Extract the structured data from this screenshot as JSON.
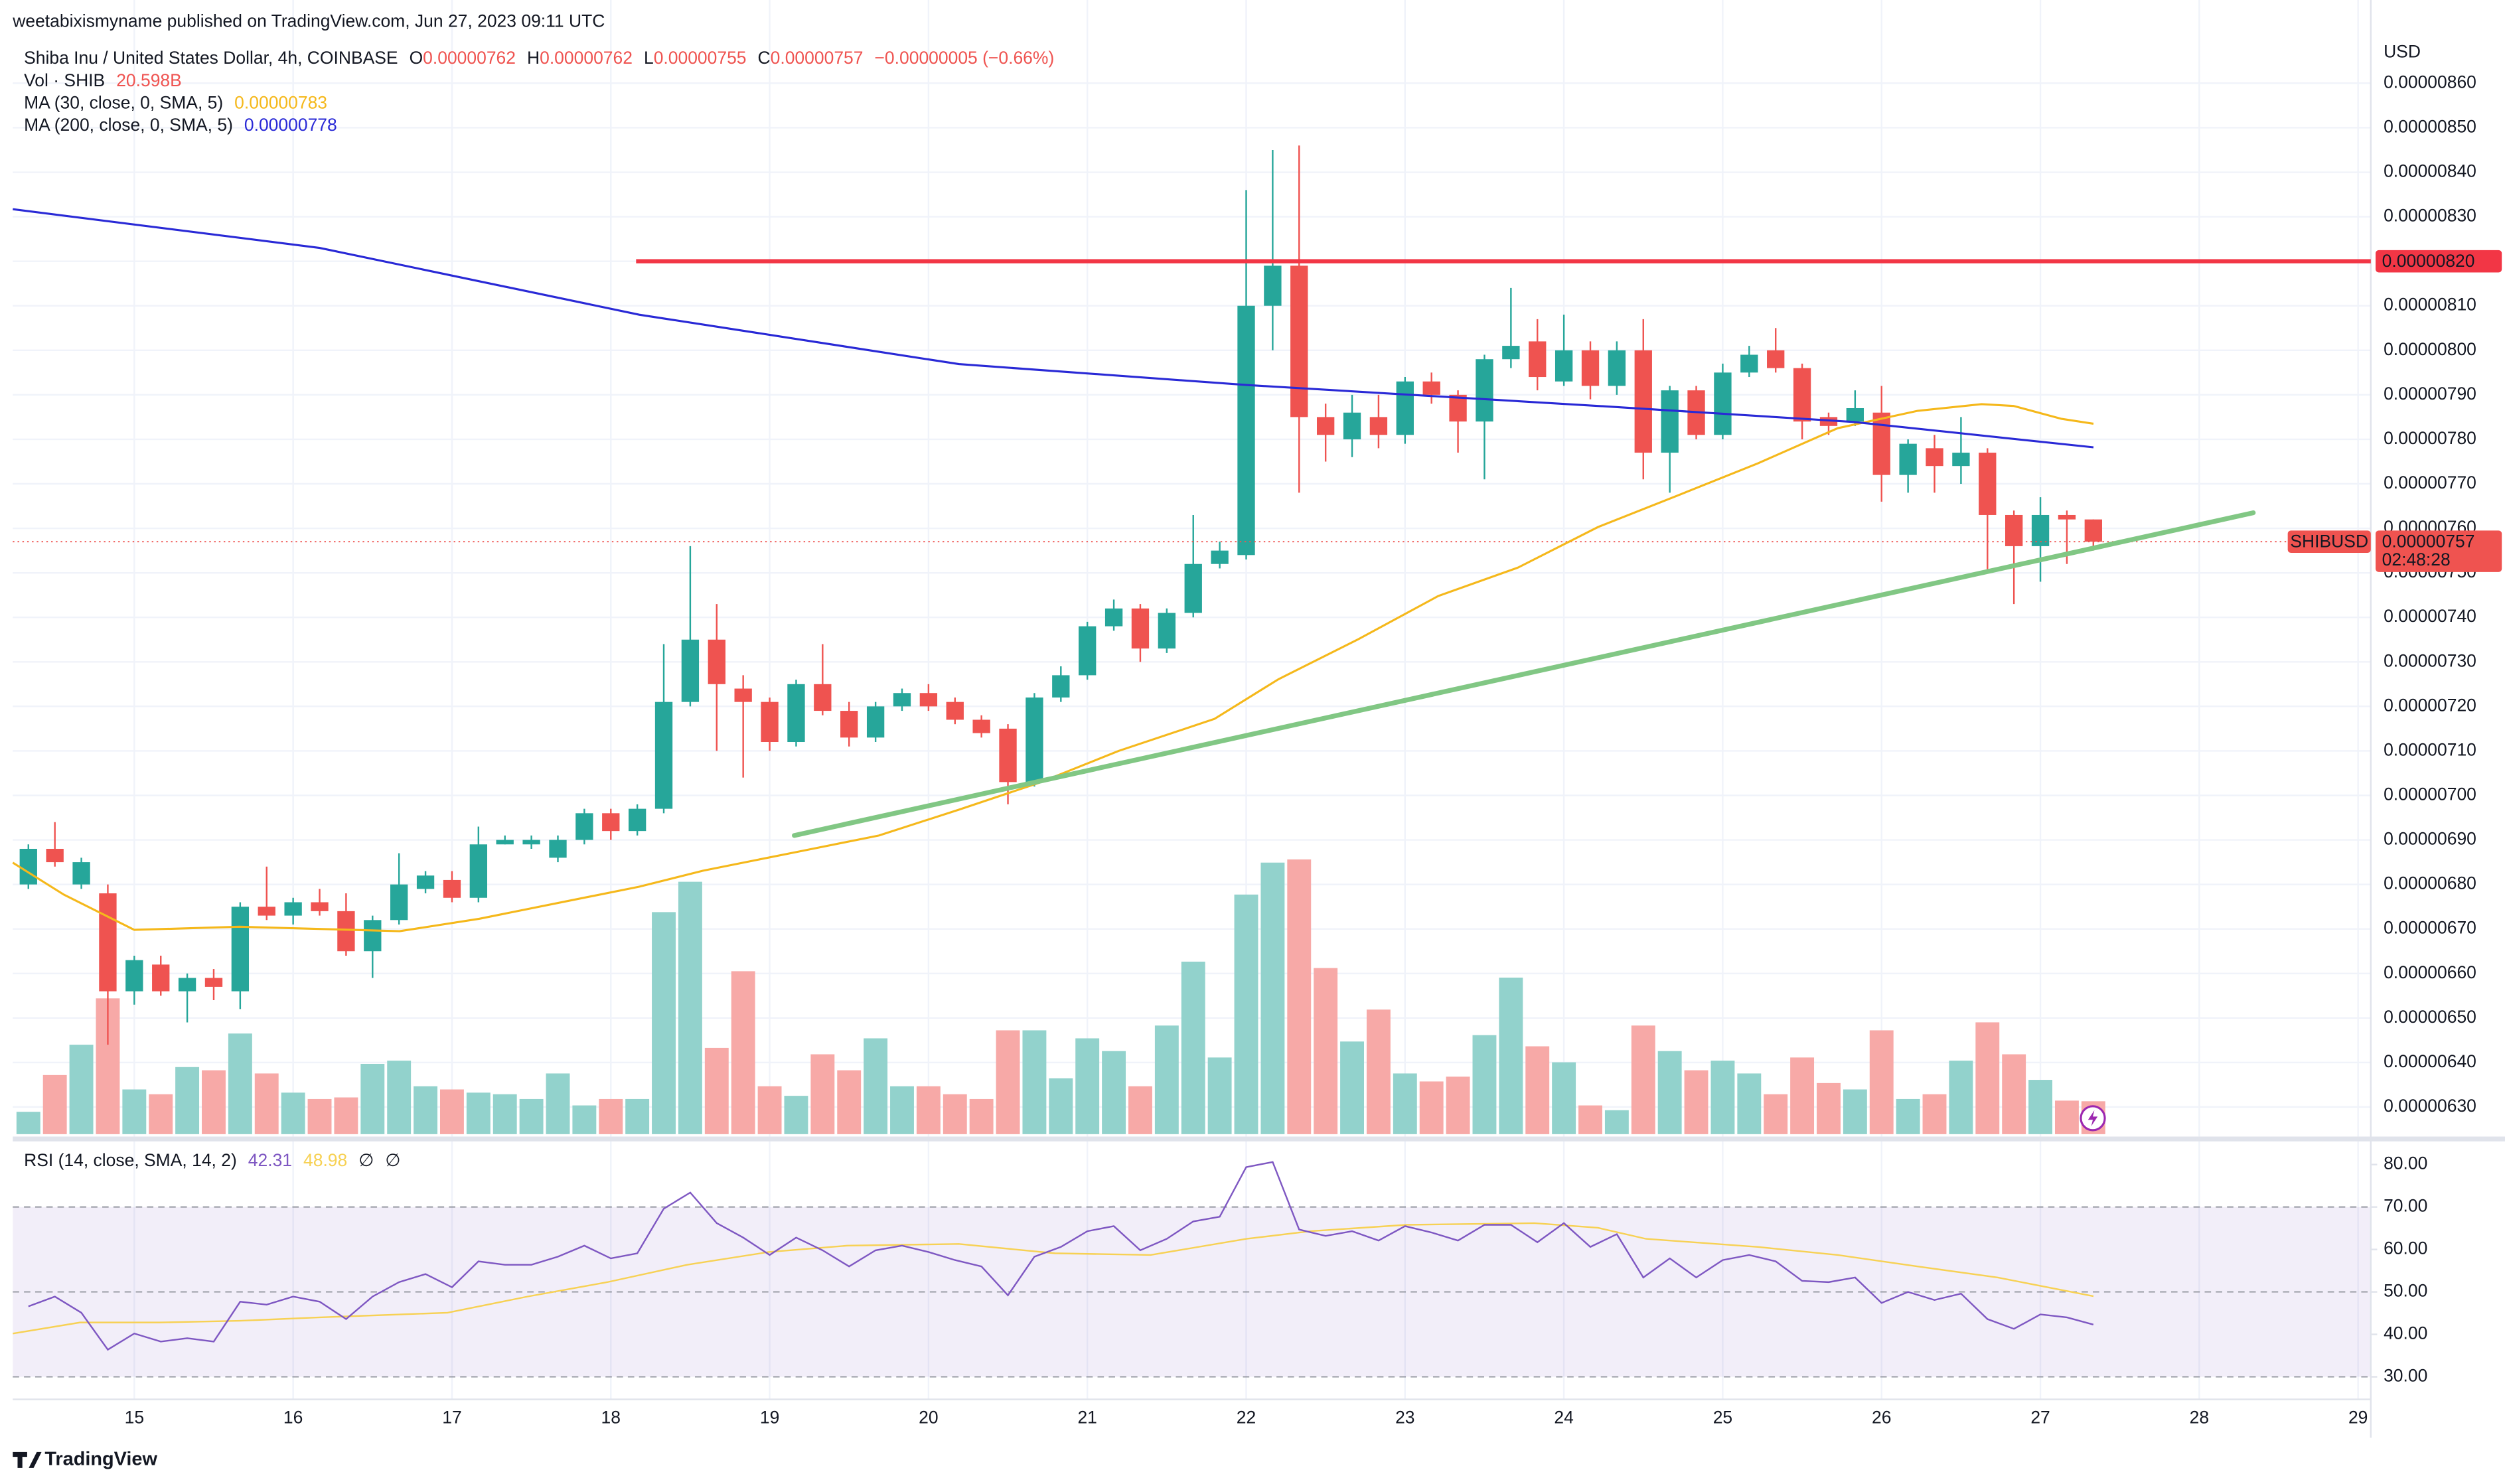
{
  "header": {
    "text": "weetabixismyname published on TradingView.com, Jun 27, 2023 09:11 UTC"
  },
  "footer": {
    "brand": "TradingView"
  },
  "chart_data": {
    "type": "candlestick",
    "legend": {
      "symbol": "Shiba Inu / United States Dollar, 4h, COINBASE",
      "fields": [
        {
          "label": "O",
          "value": "0.00000762"
        },
        {
          "label": "H",
          "value": "0.00000762"
        },
        {
          "label": "L",
          "value": "0.00000755"
        },
        {
          "label": "C",
          "value": "0.00000757"
        }
      ],
      "change": "−0.00000005 (−0.66%)"
    },
    "currency": "USD",
    "up_color": "#26a69a",
    "down_color": "#ef5350",
    "up_volume_color": "#92d2cc",
    "down_volume_color": "#f7a9a7",
    "xlim": [
      14.235,
      29.08
    ],
    "xticks": [
      15,
      16,
      17,
      18,
      19,
      20,
      21,
      22,
      23,
      24,
      25,
      26,
      27,
      28,
      29
    ],
    "ylim": [
      6.239e-06,
      8.708e-06
    ],
    "yticks": [
      {
        "value": 6.3e-06,
        "label": "0.00000630"
      },
      {
        "value": 6.4e-06,
        "label": "0.00000640"
      },
      {
        "value": 6.5e-06,
        "label": "0.00000650"
      },
      {
        "value": 6.6e-06,
        "label": "0.00000660"
      },
      {
        "value": 6.7e-06,
        "label": "0.00000670"
      },
      {
        "value": 6.8e-06,
        "label": "0.00000680"
      },
      {
        "value": 6.9e-06,
        "label": "0.00000690"
      },
      {
        "value": 7e-06,
        "label": "0.00000700"
      },
      {
        "value": 7.1e-06,
        "label": "0.00000710"
      },
      {
        "value": 7.2e-06,
        "label": "0.00000720"
      },
      {
        "value": 7.3e-06,
        "label": "0.00000730"
      },
      {
        "value": 7.4e-06,
        "label": "0.00000740"
      },
      {
        "value": 7.5e-06,
        "label": "0.00000750"
      },
      {
        "value": 7.6e-06,
        "label": "0.00000760"
      },
      {
        "value": 7.7e-06,
        "label": "0.00000770"
      },
      {
        "value": 7.8e-06,
        "label": "0.00000780"
      },
      {
        "value": 7.9e-06,
        "label": "0.00000790"
      },
      {
        "value": 8e-06,
        "label": "0.00000800"
      },
      {
        "value": 8.1e-06,
        "label": "0.00000810"
      },
      {
        "value": 8.2e-06,
        "label": "0.00000820"
      },
      {
        "value": 8.3e-06,
        "label": "0.00000830"
      },
      {
        "value": 8.4e-06,
        "label": "0.00000840"
      },
      {
        "value": 8.5e-06,
        "label": "0.00000850"
      },
      {
        "value": 8.6e-06,
        "label": "0.00000860"
      }
    ],
    "grid": true,
    "x": [
      14.3333,
      14.5,
      14.6667,
      14.8333,
      15,
      15.1667,
      15.3333,
      15.5,
      15.6667,
      15.8333,
      16,
      16.1667,
      16.3333,
      16.5,
      16.6667,
      16.8333,
      17,
      17.1667,
      17.3333,
      17.5,
      17.6667,
      17.8333,
      18,
      18.1667,
      18.3333,
      18.5,
      18.6667,
      18.8333,
      19,
      19.1667,
      19.3333,
      19.5,
      19.6667,
      19.8333,
      20,
      20.1667,
      20.3333,
      20.5,
      20.6667,
      20.8333,
      21,
      21.1667,
      21.3333,
      21.5,
      21.6667,
      21.8333,
      22,
      22.1667,
      22.3333,
      22.5,
      22.6667,
      22.8333,
      23,
      23.1667,
      23.3333,
      23.5,
      23.6667,
      23.8333,
      24,
      24.1667,
      24.3333,
      24.5,
      24.6667,
      24.8333,
      25,
      25.1667,
      25.3333,
      25.5,
      25.6667,
      25.8333,
      26,
      26.1667,
      26.3333,
      26.5,
      26.6667,
      26.8333,
      27,
      27.1667,
      27.3333
    ],
    "open": [
      6.8e-06,
      6.88e-06,
      6.8e-06,
      6.78e-06,
      6.56e-06,
      6.62e-06,
      6.56e-06,
      6.59e-06,
      6.56e-06,
      6.75e-06,
      6.73e-06,
      6.76e-06,
      6.74e-06,
      6.65e-06,
      6.72e-06,
      6.79e-06,
      6.81e-06,
      6.77e-06,
      6.89e-06,
      6.89e-06,
      6.86e-06,
      6.9e-06,
      6.96e-06,
      6.92e-06,
      6.97e-06,
      7.21e-06,
      7.35e-06,
      7.24e-06,
      7.21e-06,
      7.12e-06,
      7.25e-06,
      7.19e-06,
      7.13e-06,
      7.2e-06,
      7.23e-06,
      7.21e-06,
      7.17e-06,
      7.15e-06,
      7.03e-06,
      7.22e-06,
      7.27e-06,
      7.38e-06,
      7.42e-06,
      7.33e-06,
      7.41e-06,
      7.52e-06,
      7.54e-06,
      8.1e-06,
      8.19e-06,
      7.85e-06,
      7.8e-06,
      7.85e-06,
      7.81e-06,
      7.93e-06,
      7.9e-06,
      7.84e-06,
      7.98e-06,
      8.02e-06,
      7.93e-06,
      8e-06,
      7.92e-06,
      8e-06,
      7.77e-06,
      7.91e-06,
      7.81e-06,
      7.95e-06,
      8e-06,
      7.96e-06,
      7.85e-06,
      7.84e-06,
      7.86e-06,
      7.72e-06,
      7.78e-06,
      7.74e-06,
      7.77e-06,
      7.63e-06,
      7.56e-06,
      7.63e-06,
      7.62e-06
    ],
    "high": [
      6.89e-06,
      6.94e-06,
      6.86e-06,
      6.8e-06,
      6.64e-06,
      6.64e-06,
      6.6e-06,
      6.61e-06,
      6.76e-06,
      6.84e-06,
      6.77e-06,
      6.79e-06,
      6.78e-06,
      6.73e-06,
      6.87e-06,
      6.83e-06,
      6.83e-06,
      6.93e-06,
      6.91e-06,
      6.91e-06,
      6.91e-06,
      6.97e-06,
      6.97e-06,
      6.98e-06,
      7.34e-06,
      7.56e-06,
      7.43e-06,
      7.27e-06,
      7.22e-06,
      7.26e-06,
      7.34e-06,
      7.21e-06,
      7.21e-06,
      7.24e-06,
      7.25e-06,
      7.22e-06,
      7.18e-06,
      7.16e-06,
      7.23e-06,
      7.29e-06,
      7.39e-06,
      7.44e-06,
      7.43e-06,
      7.42e-06,
      7.63e-06,
      7.57e-06,
      8.36e-06,
      8.45e-06,
      8.46e-06,
      7.88e-06,
      7.9e-06,
      7.9e-06,
      7.94e-06,
      7.95e-06,
      7.91e-06,
      7.99e-06,
      8.14e-06,
      8.07e-06,
      8.08e-06,
      8.02e-06,
      8.02e-06,
      8.07e-06,
      7.92e-06,
      7.92e-06,
      7.97e-06,
      8.01e-06,
      8.05e-06,
      7.97e-06,
      7.86e-06,
      7.91e-06,
      7.92e-06,
      7.8e-06,
      7.81e-06,
      7.85e-06,
      7.78e-06,
      7.64e-06,
      7.67e-06,
      7.64e-06,
      7.62e-06
    ],
    "low": [
      6.79e-06,
      6.84e-06,
      6.79e-06,
      6.44e-06,
      6.53e-06,
      6.55e-06,
      6.49e-06,
      6.54e-06,
      6.52e-06,
      6.72e-06,
      6.71e-06,
      6.73e-06,
      6.64e-06,
      6.59e-06,
      6.71e-06,
      6.78e-06,
      6.76e-06,
      6.76e-06,
      6.89e-06,
      6.88e-06,
      6.85e-06,
      6.89e-06,
      6.9e-06,
      6.91e-06,
      6.96e-06,
      7.2e-06,
      7.1e-06,
      7.04e-06,
      7.1e-06,
      7.11e-06,
      7.18e-06,
      7.11e-06,
      7.12e-06,
      7.19e-06,
      7.19e-06,
      7.16e-06,
      7.13e-06,
      6.98e-06,
      7.02e-06,
      7.21e-06,
      7.26e-06,
      7.37e-06,
      7.3e-06,
      7.32e-06,
      7.4e-06,
      7.51e-06,
      7.53e-06,
      8e-06,
      7.68e-06,
      7.75e-06,
      7.76e-06,
      7.78e-06,
      7.79e-06,
      7.88e-06,
      7.77e-06,
      7.71e-06,
      7.96e-06,
      7.91e-06,
      7.92e-06,
      7.89e-06,
      7.9e-06,
      7.71e-06,
      7.68e-06,
      7.8e-06,
      7.8e-06,
      7.94e-06,
      7.95e-06,
      7.8e-06,
      7.81e-06,
      7.83e-06,
      7.66e-06,
      7.68e-06,
      7.68e-06,
      7.7e-06,
      7.5e-06,
      7.43e-06,
      7.48e-06,
      7.52e-06,
      7.55e-06
    ],
    "close": [
      6.88e-06,
      6.85e-06,
      6.85e-06,
      6.56e-06,
      6.63e-06,
      6.56e-06,
      6.59e-06,
      6.57e-06,
      6.75e-06,
      6.73e-06,
      6.76e-06,
      6.74e-06,
      6.65e-06,
      6.72e-06,
      6.8e-06,
      6.82e-06,
      6.77e-06,
      6.89e-06,
      6.9e-06,
      6.9e-06,
      6.9e-06,
      6.96e-06,
      6.92e-06,
      6.97e-06,
      7.21e-06,
      7.35e-06,
      7.25e-06,
      7.21e-06,
      7.12e-06,
      7.25e-06,
      7.19e-06,
      7.13e-06,
      7.2e-06,
      7.23e-06,
      7.2e-06,
      7.17e-06,
      7.14e-06,
      7.03e-06,
      7.22e-06,
      7.27e-06,
      7.38e-06,
      7.42e-06,
      7.33e-06,
      7.41e-06,
      7.52e-06,
      7.55e-06,
      8.1e-06,
      8.19e-06,
      7.85e-06,
      7.81e-06,
      7.86e-06,
      7.81e-06,
      7.93e-06,
      7.9e-06,
      7.84e-06,
      7.98e-06,
      8.01e-06,
      7.94e-06,
      8e-06,
      7.92e-06,
      8e-06,
      7.77e-06,
      7.91e-06,
      7.81e-06,
      7.95e-06,
      7.99e-06,
      7.96e-06,
      7.84e-06,
      7.83e-06,
      7.87e-06,
      7.72e-06,
      7.79e-06,
      7.74e-06,
      7.77e-06,
      7.63e-06,
      7.56e-06,
      7.63e-06,
      7.62e-06,
      7.57e-06
    ],
    "volume_legend": {
      "label": "Vol · SHIB",
      "value": "20.598B"
    },
    "volume_ylim": [
      0,
      688
    ],
    "volume": [
      14,
      37,
      56,
      85,
      28,
      25,
      42,
      40,
      63,
      38,
      26,
      22,
      23,
      44,
      46,
      30,
      28,
      26,
      25,
      22,
      38,
      18,
      22,
      22,
      139,
      158,
      54,
      102,
      30,
      24,
      50,
      40,
      60,
      30,
      30,
      25,
      22,
      65,
      65,
      35,
      60,
      52,
      30,
      68,
      108,
      48,
      150,
      170,
      172,
      104,
      58,
      78,
      38,
      33,
      36,
      62,
      98,
      55,
      45,
      18,
      15,
      68,
      52,
      40,
      46,
      38,
      25,
      48,
      32,
      28,
      65,
      22,
      25,
      46,
      70,
      50,
      34,
      21,
      20.598
    ],
    "ma": [
      {
        "name": "MA (30, close, 0, SMA, 5)",
        "last": "0.00000783",
        "color": "#f5b81b",
        "x": [
          14.235,
          14.557,
          15,
          15.664,
          16.67,
          17.173,
          18.179,
          18.581,
          19.185,
          19.688,
          20.191,
          20.694,
          21.197,
          21.801,
          22.203,
          22.706,
          23.209,
          23.712,
          24.215,
          24.718,
          25.221,
          25.724,
          26.227,
          26.63,
          26.831,
          27.133,
          27.334
        ],
        "values": [
          6.849e-06,
          6.777e-06,
          6.698e-06,
          6.705e-06,
          6.695e-06,
          6.723e-06,
          6.795e-06,
          6.831e-06,
          6.874e-06,
          6.91e-06,
          6.968e-06,
          7.028e-06,
          7.1e-06,
          7.172e-06,
          7.261e-06,
          7.351e-06,
          7.448e-06,
          7.512e-06,
          7.603e-06,
          7.674e-06,
          7.746e-06,
          7.825e-06,
          7.864e-06,
          7.879e-06,
          7.875e-06,
          7.846e-06,
          7.835e-06
        ]
      },
      {
        "name": "MA (200, close, 0, SMA, 5)",
        "last": "0.00000778",
        "color": "#2929d6",
        "x": [
          14.235,
          16.167,
          18.179,
          20.191,
          22.002,
          24.215,
          25.825,
          27.334
        ],
        "values": [
          8.317e-06,
          8.23e-06,
          8.08e-06,
          7.969e-06,
          7.922e-06,
          7.875e-06,
          7.839e-06,
          7.782e-06
        ]
      }
    ],
    "drawings": [
      {
        "type": "horizontal",
        "color": "#f23645",
        "x": 18.159,
        "y": 8.2e-06,
        "label": "0.00000820"
      },
      {
        "type": "trend",
        "color": "#81c784",
        "x": [
          19.155,
          28.34
        ],
        "y": [
          6.91e-06,
          7.635e-06
        ]
      }
    ],
    "last_price": {
      "symbol": "SHIBUSD",
      "label": "0.00000757",
      "countdown": "02:48:28"
    },
    "rsi": {
      "label": "RSI (14, close, SMA, 14, 2)",
      "readouts": [
        "42.31",
        "48.98",
        "∅",
        "∅"
      ],
      "color": "#7e57c2",
      "sma_color": "#f7d154",
      "ylim": [
        24.7,
        84.9
      ],
      "yticks": [
        {
          "value": 30,
          "label": "30.00"
        },
        {
          "value": 40,
          "label": "40.00"
        },
        {
          "value": 50,
          "label": "50.00"
        },
        {
          "value": 60,
          "label": "60.00"
        },
        {
          "value": 70,
          "label": "70.00"
        },
        {
          "value": 80,
          "label": "80.00"
        }
      ],
      "band": [
        30,
        70
      ],
      "midline": 50,
      "values": [
        46.6,
        48.9,
        45.1,
        36.4,
        40.2,
        38.3,
        39.1,
        38.3,
        47.7,
        47.0,
        48.9,
        47.7,
        43.6,
        48.9,
        52.3,
        54.2,
        51.1,
        57.2,
        56.4,
        56.4,
        58.3,
        60.9,
        57.9,
        59.1,
        69.6,
        73.4,
        66.2,
        62.8,
        58.7,
        62.8,
        59.8,
        56.0,
        59.8,
        60.9,
        59.4,
        57.5,
        56.0,
        49.2,
        58.3,
        60.6,
        64.3,
        65.5,
        59.8,
        62.5,
        66.6,
        67.7,
        79.4,
        80.6,
        64.7,
        63.2,
        64.3,
        62.1,
        65.5,
        64.0,
        62.1,
        65.8,
        65.8,
        61.7,
        66.2,
        60.6,
        63.6,
        53.4,
        57.9,
        53.4,
        57.5,
        58.7,
        57.2,
        52.6,
        52.3,
        53.4,
        47.4,
        50.0,
        48.1,
        49.6,
        43.6,
        41.3,
        44.7,
        44.0,
        42.31
      ],
      "sma_x": [
        14.235,
        14.658,
        15.161,
        15.664,
        16.167,
        16.972,
        17.475,
        17.978,
        18.481,
        18.994,
        19.487,
        20.191,
        20.795,
        21.398,
        22.002,
        22.404,
        23.008,
        23.813,
        24.215,
        24.517,
        25.221,
        25.724,
        26.227,
        26.73,
        27.334
      ],
      "sma_values": [
        40.2,
        42.8,
        42.8,
        43.2,
        44.0,
        45.1,
        48.9,
        52.3,
        56.4,
        59.4,
        60.9,
        61.3,
        59.1,
        58.7,
        62.5,
        64.3,
        65.8,
        66.2,
        65.1,
        62.5,
        60.6,
        58.7,
        56.0,
        53.4,
        48.98
      ]
    }
  }
}
